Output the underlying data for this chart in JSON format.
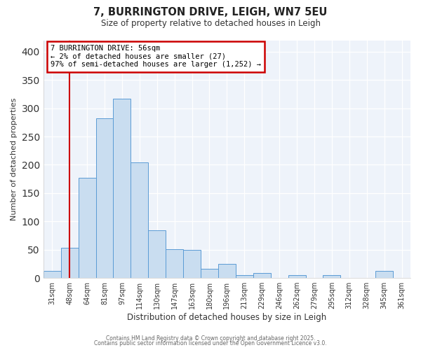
{
  "title": "7, BURRINGTON DRIVE, LEIGH, WN7 5EU",
  "subtitle": "Size of property relative to detached houses in Leigh",
  "xlabel": "Distribution of detached houses by size in Leigh",
  "ylabel": "Number of detached properties",
  "bar_color": "#c9ddf0",
  "bar_edge_color": "#5b9bd5",
  "plot_bg_color": "#eef3fa",
  "fig_bg_color": "#ffffff",
  "categories": [
    "31sqm",
    "48sqm",
    "64sqm",
    "81sqm",
    "97sqm",
    "114sqm",
    "130sqm",
    "147sqm",
    "163sqm",
    "180sqm",
    "196sqm",
    "213sqm",
    "229sqm",
    "246sqm",
    "262sqm",
    "279sqm",
    "295sqm",
    "312sqm",
    "328sqm",
    "345sqm",
    "361sqm"
  ],
  "values": [
    13,
    54,
    177,
    282,
    317,
    204,
    84,
    51,
    50,
    16,
    25,
    5,
    9,
    0,
    5,
    0,
    5,
    0,
    0,
    13,
    0
  ],
  "ylim": [
    0,
    420
  ],
  "yticks": [
    0,
    50,
    100,
    150,
    200,
    250,
    300,
    350,
    400
  ],
  "property_line_x": 1.0,
  "annotation_title": "7 BURRINGTON DRIVE: 56sqm",
  "annotation_line1": "← 2% of detached houses are smaller (27)",
  "annotation_line2": "97% of semi-detached houses are larger (1,252) →",
  "annotation_box_color": "#ffffff",
  "annotation_border_color": "#cc0000",
  "vline_color": "#cc0000",
  "footer1": "Contains HM Land Registry data © Crown copyright and database right 2025.",
  "footer2": "Contains public sector information licensed under the Open Government Licence v3.0."
}
